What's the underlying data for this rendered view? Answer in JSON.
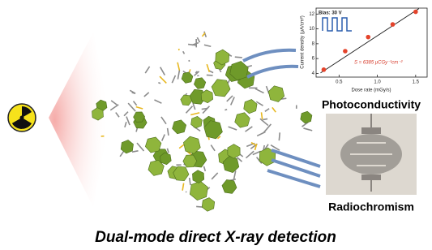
{
  "chart_data": {
    "type": "scatter",
    "annotations": [
      "Bias: 30 V",
      "S = 6385 μCGy⁻¹cm⁻²"
    ],
    "x_label": "Dose rate (mGy/s)",
    "y_label": "Current density (μA/cm²)",
    "x": [
      0.3,
      0.58,
      0.88,
      1.2,
      1.5
    ],
    "values": [
      4.5,
      7.0,
      8.9,
      10.6,
      12.3
    ],
    "color": "#e4432b",
    "fit_color": "#222222",
    "xlim": [
      0.2,
      1.65
    ],
    "ylim": [
      3.5,
      12.8
    ],
    "xticks": [
      0.5,
      {
        "value": 1.0,
        "label": "1.0"
      },
      1.5
    ],
    "yticks": [
      4,
      6,
      8,
      10,
      12
    ]
  },
  "labels": {
    "photo": "Photoconductivity",
    "radio": "Radiochromism",
    "title": "Dual-mode direct X-ray detection"
  }
}
